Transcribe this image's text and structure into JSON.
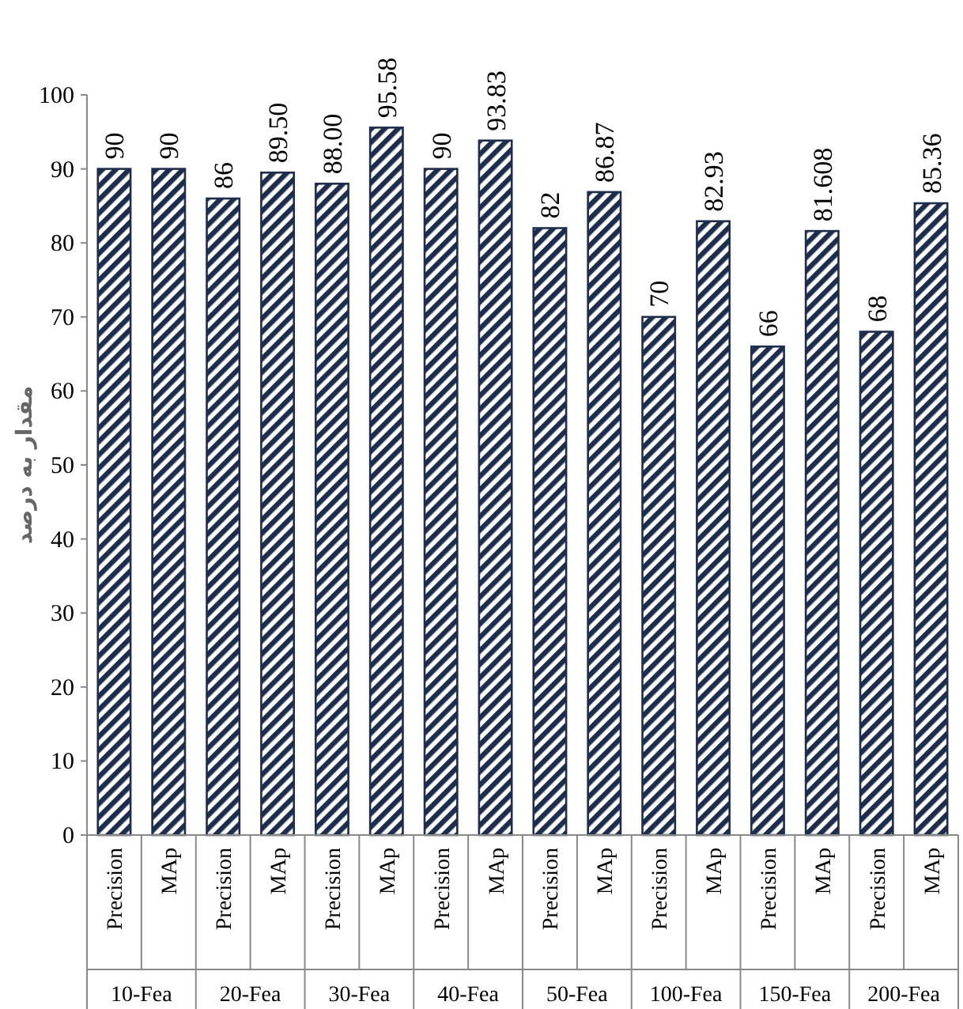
{
  "chart_data": {
    "type": "bar",
    "ylabel": "مقدار به درصد",
    "categories": [
      "Precision",
      "MAp",
      "Precision",
      "MAp",
      "Precision",
      "MAp",
      "Precision",
      "MAp",
      "Precision",
      "MAp",
      "Precision",
      "MAp",
      "Precision",
      "MAp",
      "Precision",
      "MAp"
    ],
    "values": [
      90,
      90,
      86,
      89.5,
      88,
      95.58,
      90,
      93.83,
      82,
      86.87,
      70,
      82.93,
      66,
      81.608,
      68,
      85.36
    ],
    "value_labels": [
      "90",
      "90",
      "86",
      "89.50",
      "88.00",
      "95.58",
      "90",
      "93.83",
      "82",
      "86.87",
      "70",
      "82.93",
      "66",
      "81.608",
      "68",
      "85.36"
    ],
    "color": "#1f2d4d",
    "ylim": [
      0,
      100
    ],
    "yticks": [
      0,
      10,
      20,
      30,
      40,
      50,
      60,
      70,
      80,
      90,
      100
    ],
    "annotations": [
      "10-Fea",
      "20-Fea",
      "30-Fea",
      "40-Fea",
      "50-Fea",
      "100-Fea",
      "150-Fea",
      "200-Fea"
    ],
    "grid": false
  }
}
